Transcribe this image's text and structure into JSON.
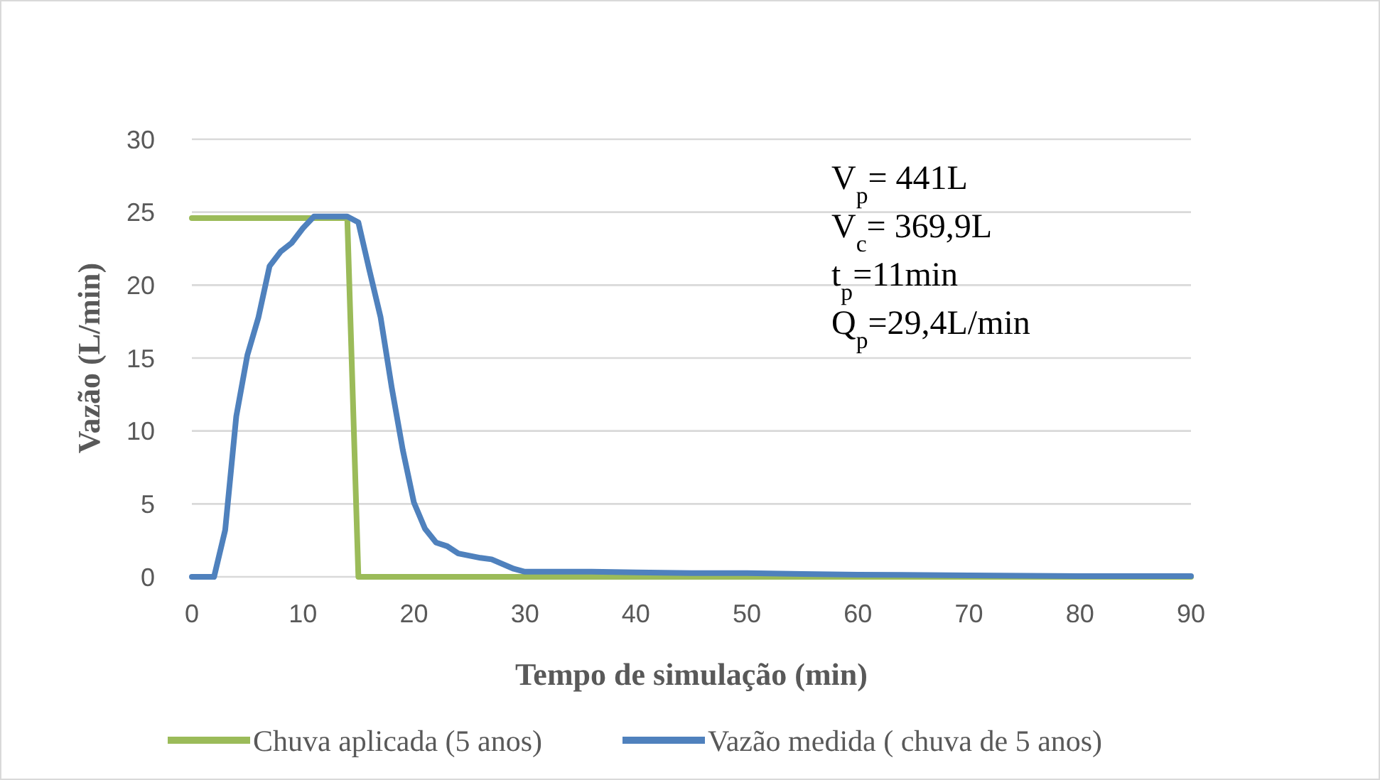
{
  "chart_data": {
    "type": "line",
    "xlabel": "Tempo de simulação (min)",
    "ylabel": "Vazão (L/min)",
    "xlim": [
      0,
      90
    ],
    "xticks": [
      0,
      10,
      20,
      30,
      40,
      50,
      60,
      70,
      80,
      90
    ],
    "ylim": [
      0,
      30
    ],
    "yticks": [
      0,
      5,
      10,
      15,
      20,
      25,
      30
    ],
    "grid": "y",
    "legend": "bottom",
    "marker": "none",
    "line_style": "solid",
    "series": [
      {
        "name": "Chuva aplicada (5 anos)",
        "color": "#9bbb59",
        "x": [
          0,
          14,
          15,
          90
        ],
        "values": [
          24.6,
          24.6,
          0,
          0
        ]
      },
      {
        "name": "Vazão medida ( chuva de 5 anos)",
        "color": "#4f81bd",
        "x": [
          0,
          2,
          3,
          4,
          5,
          6,
          7,
          8,
          9,
          10,
          11,
          14,
          15,
          16,
          17,
          18,
          19,
          20,
          21,
          22,
          23,
          24,
          26,
          27,
          29,
          30,
          36,
          40,
          45,
          50,
          55,
          60,
          70,
          80,
          90
        ],
        "values": [
          0,
          0,
          3.2,
          11,
          15.2,
          17.8,
          21.3,
          22.3,
          22.9,
          23.9,
          24.7,
          24.7,
          24.3,
          21,
          17.8,
          13,
          8.7,
          5.1,
          3.3,
          2.35,
          2.1,
          1.6,
          1.3,
          1.2,
          0.55,
          0.35,
          0.35,
          0.3,
          0.25,
          0.25,
          0.2,
          0.15,
          0.1,
          0.05,
          0.05
        ]
      }
    ],
    "annotations": [
      "V$_{p}$= 441L",
      "V$_{c}$= 369,9L",
      "t$_{p}$=11min",
      "Q$_{p}$=29,4L/min"
    ]
  }
}
